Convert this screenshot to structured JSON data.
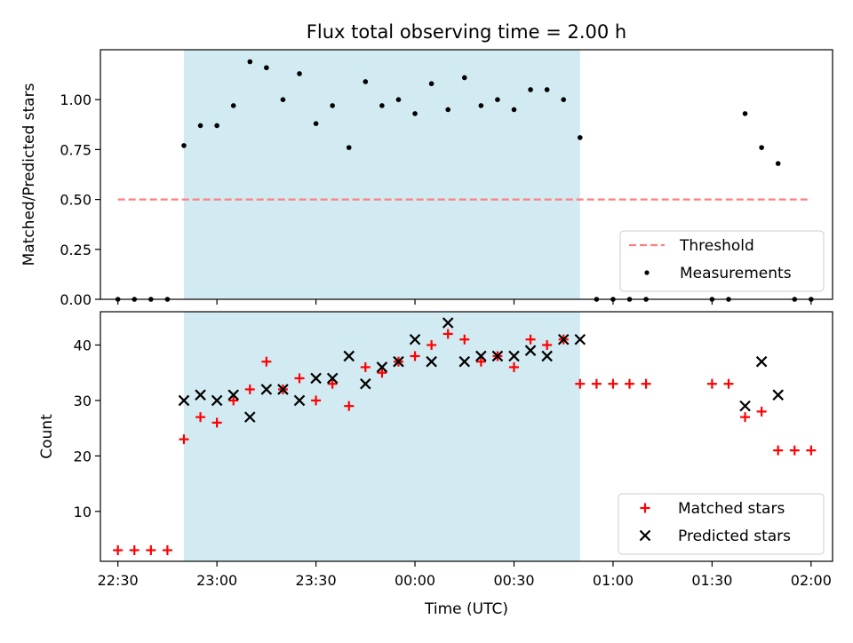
{
  "figure_title": "Flux total observing time = 2.00 h",
  "shared_x": {
    "label": "Time (UTC)",
    "ticks": [
      "22:30",
      "23:00",
      "23:30",
      "00:00",
      "00:30",
      "01:00",
      "01:30",
      "02:00"
    ],
    "tick_minutes": [
      0,
      30,
      60,
      90,
      120,
      150,
      180,
      210
    ]
  },
  "colors": {
    "shade": "#add8e6",
    "threshold": "#ff7f7f",
    "matched": "#ff0000",
    "predicted": "#000000",
    "measurement": "#000000"
  },
  "chart_data": [
    {
      "type": "scatter",
      "title": "Flux total observing time = 2.00 h",
      "xlabel": "",
      "ylabel": "Matched/Predicted stars",
      "ylim": [
        0,
        1.25
      ],
      "yticks": [
        "0.00",
        "0.25",
        "0.50",
        "0.75",
        "1.00"
      ],
      "yticks_values": [
        0,
        0.25,
        0.5,
        0.75,
        1.0
      ],
      "shaded_interval": [
        "22:50",
        "00:50"
      ],
      "threshold": {
        "name": "Threshold",
        "y": 0.5,
        "x_range": [
          "22:30",
          "02:00"
        ]
      },
      "legend": {
        "position": "lower-right",
        "entries": [
          "Threshold",
          "Measurements"
        ]
      },
      "series": [
        {
          "name": "Measurements",
          "x": [
            "22:30",
            "22:35",
            "22:40",
            "22:45",
            "22:50",
            "22:55",
            "23:00",
            "23:05",
            "23:10",
            "23:15",
            "23:20",
            "23:25",
            "23:30",
            "23:35",
            "23:40",
            "23:45",
            "23:50",
            "23:55",
            "00:00",
            "00:05",
            "00:10",
            "00:15",
            "00:20",
            "00:25",
            "00:30",
            "00:35",
            "00:40",
            "00:45",
            "00:50",
            "00:55",
            "01:00",
            "01:05",
            "01:10",
            "01:30",
            "01:35",
            "01:40",
            "01:45",
            "01:50",
            "01:55",
            "02:00"
          ],
          "y": [
            0,
            0,
            0,
            0,
            0.77,
            0.87,
            0.87,
            0.97,
            1.19,
            1.16,
            1.0,
            1.13,
            0.88,
            0.97,
            0.76,
            1.09,
            0.97,
            1.0,
            0.93,
            1.08,
            0.95,
            1.11,
            0.97,
            1.0,
            0.95,
            1.05,
            1.05,
            1.0,
            0.81,
            0,
            0,
            0,
            0,
            0,
            0,
            0.93,
            0.76,
            0.68,
            0,
            0
          ]
        }
      ]
    },
    {
      "type": "scatter",
      "xlabel": "Time (UTC)",
      "ylabel": "Count",
      "ylim": [
        1,
        46
      ],
      "yticks": [
        "10",
        "20",
        "30",
        "40"
      ],
      "yticks_values": [
        10,
        20,
        30,
        40
      ],
      "shaded_interval": [
        "22:50",
        "00:50"
      ],
      "legend": {
        "position": "lower-right",
        "entries": [
          "Matched stars",
          "Predicted stars"
        ]
      },
      "series": [
        {
          "name": "Matched stars",
          "x": [
            "22:30",
            "22:35",
            "22:40",
            "22:45",
            "22:50",
            "22:55",
            "23:00",
            "23:05",
            "23:10",
            "23:15",
            "23:20",
            "23:25",
            "23:30",
            "23:35",
            "23:40",
            "23:45",
            "23:50",
            "23:55",
            "00:00",
            "00:05",
            "00:10",
            "00:15",
            "00:20",
            "00:25",
            "00:30",
            "00:35",
            "00:40",
            "00:45",
            "00:50",
            "00:55",
            "01:00",
            "01:05",
            "01:10",
            "01:30",
            "01:35",
            "01:40",
            "01:45",
            "01:50",
            "01:55",
            "02:00"
          ],
          "y": [
            3,
            3,
            3,
            3,
            23,
            27,
            26,
            30,
            32,
            37,
            32,
            34,
            30,
            33,
            29,
            36,
            35,
            37,
            38,
            40,
            42,
            41,
            37,
            38,
            36,
            41,
            40,
            41,
            33,
            33,
            33,
            33,
            33,
            33,
            33,
            27,
            28,
            21,
            21,
            21
          ]
        },
        {
          "name": "Predicted stars",
          "x": [
            "22:50",
            "22:55",
            "23:00",
            "23:05",
            "23:10",
            "23:15",
            "23:20",
            "23:25",
            "23:30",
            "23:35",
            "23:40",
            "23:45",
            "23:50",
            "23:55",
            "00:00",
            "00:05",
            "00:10",
            "00:15",
            "00:20",
            "00:25",
            "00:30",
            "00:35",
            "00:40",
            "00:45",
            "00:50",
            "01:40",
            "01:45",
            "01:50"
          ],
          "y": [
            30,
            31,
            30,
            31,
            27,
            32,
            32,
            30,
            34,
            34,
            38,
            33,
            36,
            37,
            41,
            37,
            44,
            37,
            38,
            38,
            38,
            39,
            38,
            41,
            41,
            29,
            37,
            31
          ]
        }
      ]
    }
  ]
}
